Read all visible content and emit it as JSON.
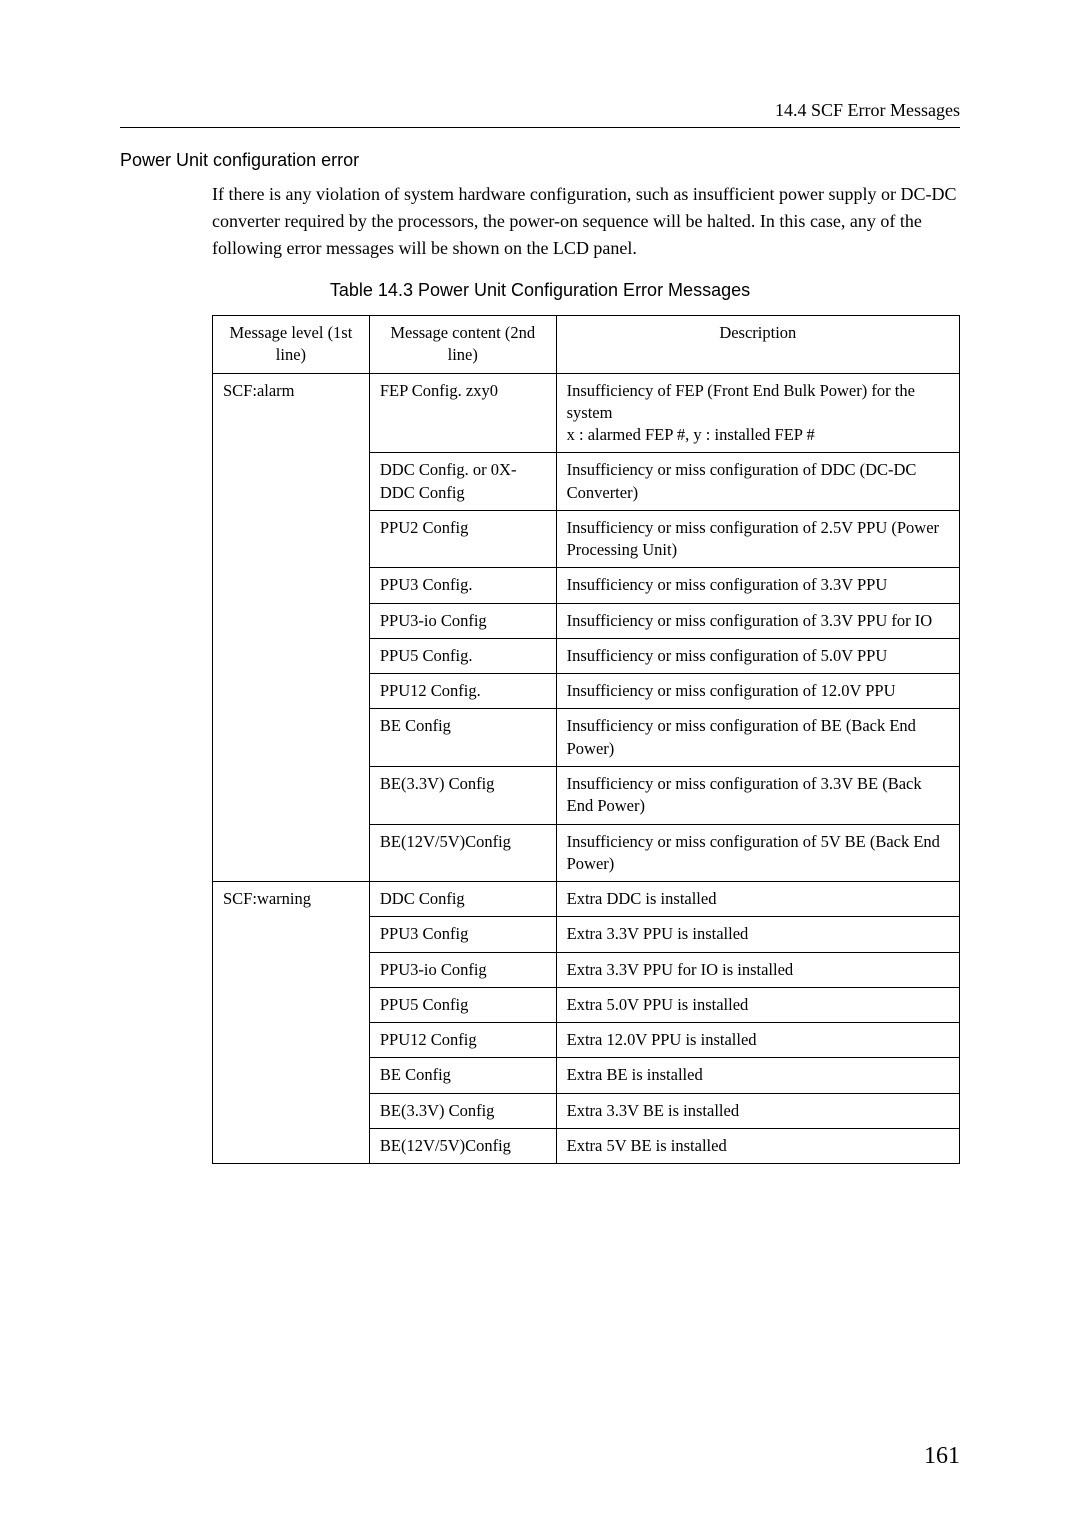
{
  "header": {
    "running_title": "14.4  SCF Error Messages"
  },
  "section": {
    "heading": "Power Unit configuration error",
    "paragraph": "If there is any violation of system hardware configuration, such as insufficient power supply or DC-DC converter required by the processors, the power-on sequence will be halted. In this case, any of the following error messages will be shown on the LCD panel."
  },
  "table": {
    "caption": "Table 14.3    Power Unit Configuration Error Messages",
    "columns": [
      "Message level (1st line)",
      "Message content (2nd line)",
      "Description"
    ],
    "groups": [
      {
        "level": "SCF:alarm",
        "rows": [
          {
            "content": "FEP Config. zxy0",
            "desc": "Insufficiency of FEP (Front End Bulk Power) for the system\nx :  alarmed FEP #,   y : installed FEP #"
          },
          {
            "content": "DDC Config. or 0X-DDC Config",
            "desc": "Insufficiency or miss configuration of DDC (DC-DC Converter)"
          },
          {
            "content": "PPU2 Config",
            "desc": "Insufficiency or miss configuration of 2.5V PPU (Power Processing Unit)"
          },
          {
            "content": "PPU3 Config.",
            "desc": "Insufficiency or miss configuration of 3.3V PPU"
          },
          {
            "content": "PPU3-io Config",
            "desc": "Insufficiency or miss configuration of 3.3V PPU for IO"
          },
          {
            "content": "PPU5 Config.",
            "desc": "Insufficiency or miss configuration of 5.0V PPU"
          },
          {
            "content": "PPU12 Config.",
            "desc": "Insufficiency or miss configuration of 12.0V PPU"
          },
          {
            "content": "BE Config",
            "desc": "Insufficiency or miss configuration of BE (Back End Power)"
          },
          {
            "content": "BE(3.3V) Config",
            "desc": "Insufficiency or miss configuration of 3.3V BE (Back End Power)"
          },
          {
            "content": "BE(12V/5V)Config",
            "desc": "Insufficiency or miss configuration of 5V BE (Back End Power)"
          }
        ]
      },
      {
        "level": "SCF:warning",
        "rows": [
          {
            "content": "DDC Config",
            "desc": "Extra DDC is installed"
          },
          {
            "content": "PPU3 Config",
            "desc": "Extra 3.3V PPU is installed"
          },
          {
            "content": "PPU3-io Config",
            "desc": "Extra 3.3V PPU for IO is installed"
          },
          {
            "content": "PPU5 Config",
            "desc": "Extra 5.0V PPU is installed"
          },
          {
            "content": "PPU12 Config",
            "desc": "Extra 12.0V PPU is installed"
          },
          {
            "content": "BE Config",
            "desc": "Extra BE is installed"
          },
          {
            "content": "BE(3.3V) Config",
            "desc": "Extra 3.3V BE is installed"
          },
          {
            "content": "BE(12V/5V)Config",
            "desc": "Extra 5V BE is installed"
          }
        ]
      }
    ]
  },
  "page_number": "161"
}
